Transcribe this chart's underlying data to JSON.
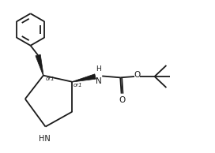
{
  "background_color": "#ffffff",
  "line_color": "#1a1a1a",
  "line_width": 1.3,
  "font_size": 6.5,
  "fig_width": 2.72,
  "fig_height": 1.94,
  "dpi": 100,
  "xlim": [
    0,
    10
  ],
  "ylim": [
    0,
    7
  ]
}
